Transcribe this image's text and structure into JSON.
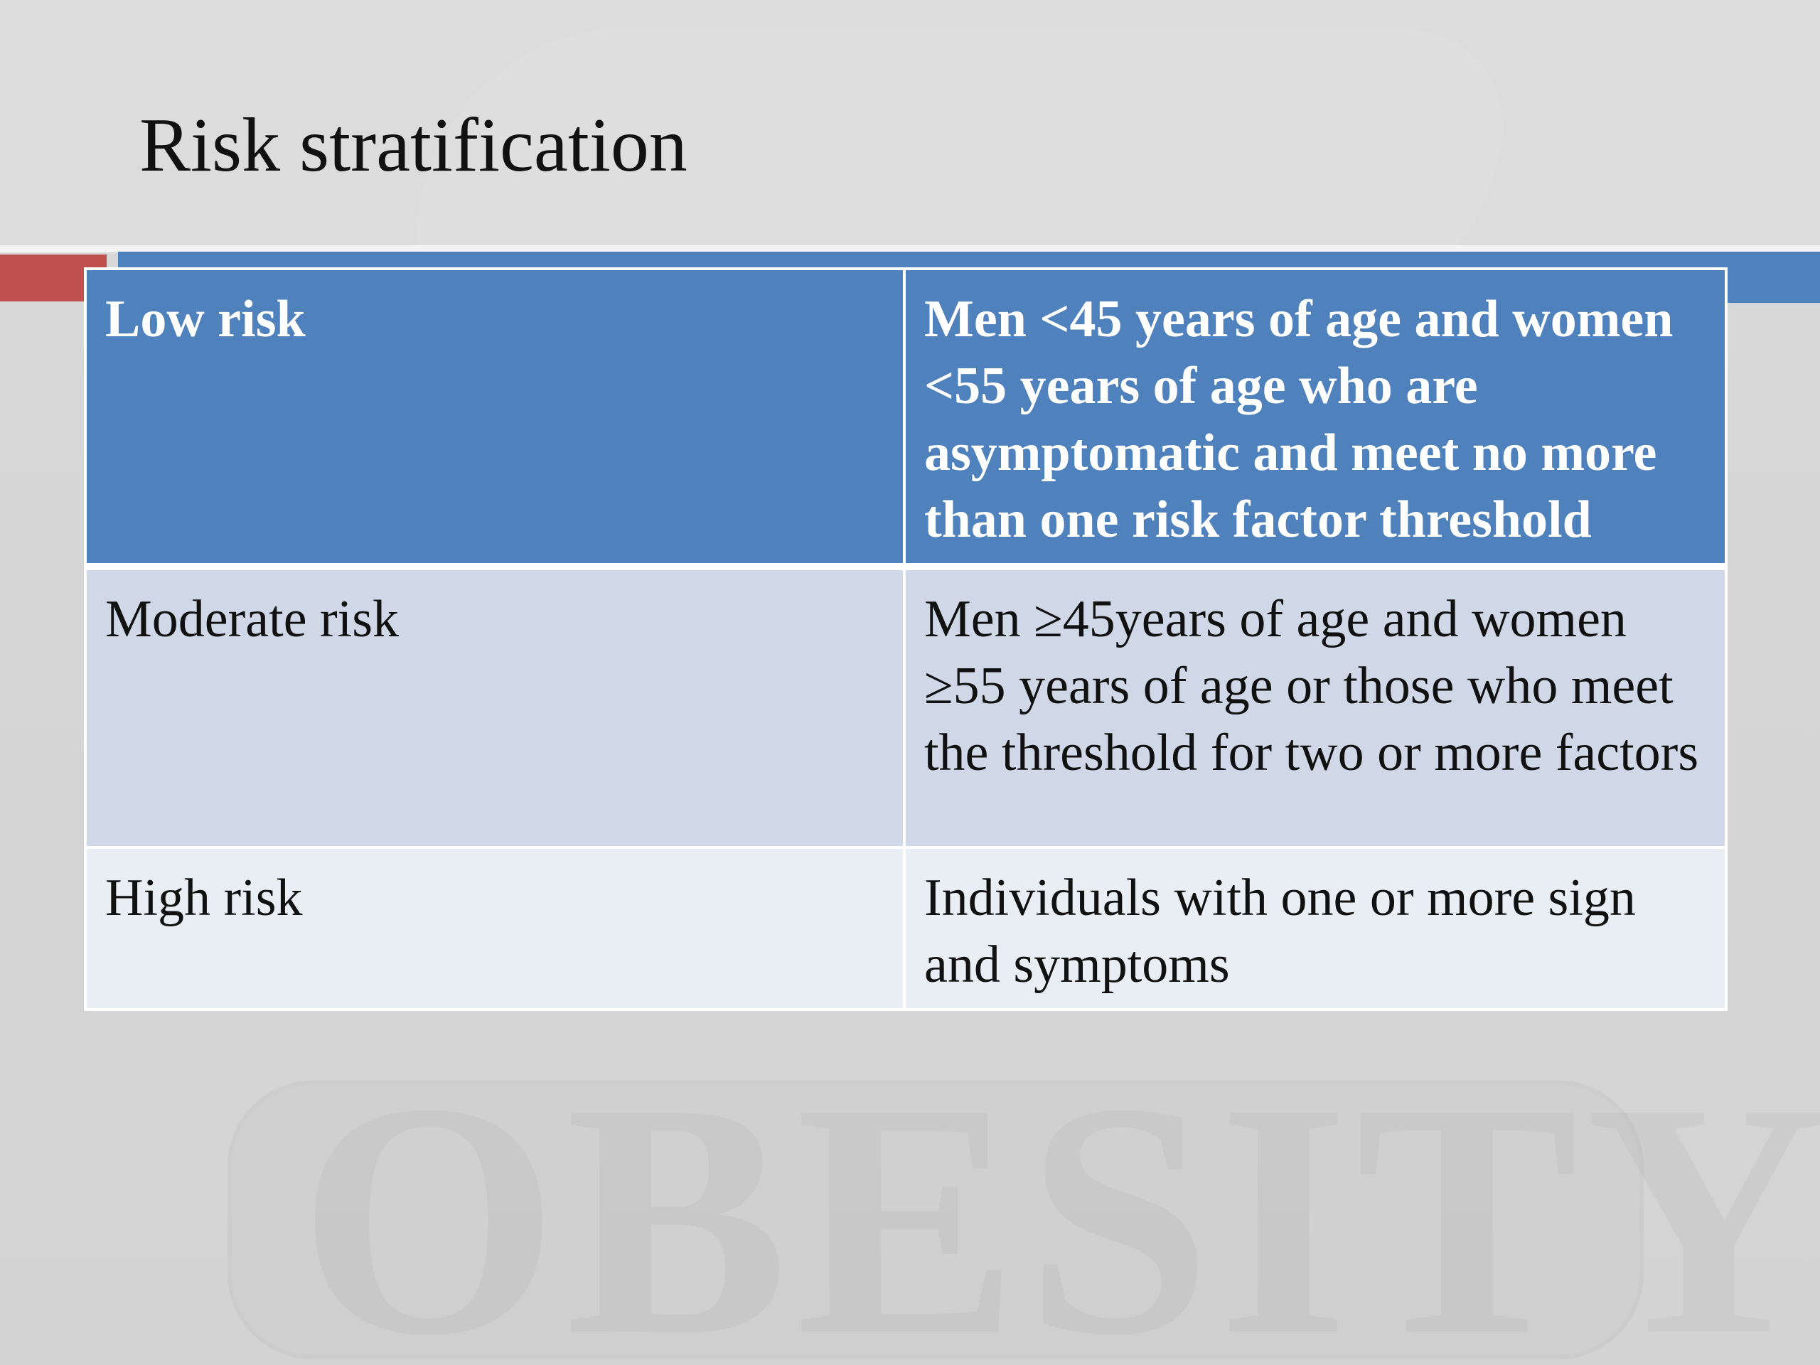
{
  "slide": {
    "title": "Risk stratification",
    "watermark": "OBESITY",
    "colors": {
      "accent_blue": "#4f81bd",
      "accent_red": "#c0504d",
      "row_band_dark": "#d0d8e8",
      "row_band_light": "#e9edf4"
    }
  },
  "table": {
    "rows": [
      {
        "category": "Low risk",
        "description": "Men <45 years  of age and women <55 years of age who are asymptomatic and meet no more than one risk factor threshold"
      },
      {
        "category": "Moderate risk",
        "description": "Men ≥45years of age and women ≥55 years of age or those who meet the threshold for two or more factors"
      },
      {
        "category": "High risk",
        "description": "Individuals with one or more sign and symptoms"
      }
    ]
  }
}
